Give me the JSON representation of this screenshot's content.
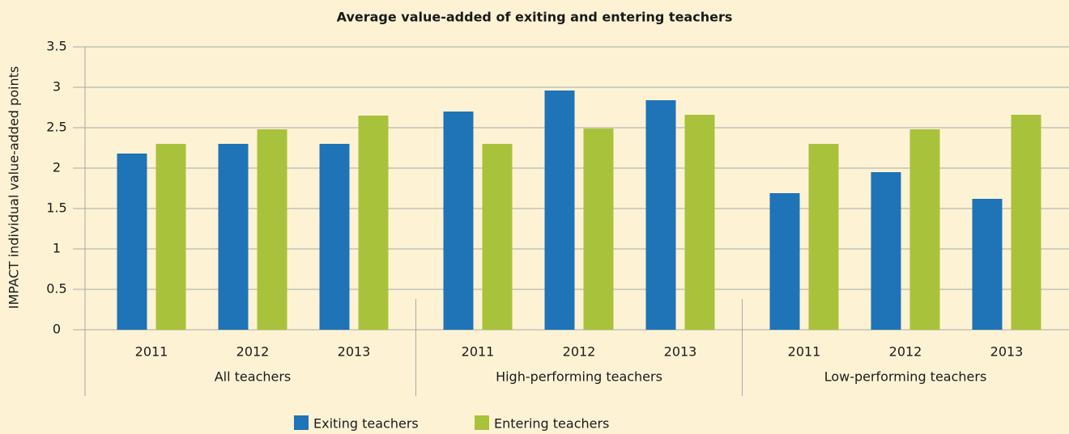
{
  "chart_data": {
    "type": "bar",
    "title": "Average value-added of exiting and entering teachers",
    "y_label": "IMPACT individual value-added points",
    "categories": [
      "2011",
      "2012",
      "2013",
      "2011",
      "2012",
      "2013",
      "2011",
      "2012",
      "2013"
    ],
    "category_groups": [
      "All teachers",
      "High-performing teachers",
      "Low-performing teachers"
    ],
    "series": [
      {
        "name": "Exiting teachers",
        "color": "#1f73b7",
        "values": [
          2.18,
          2.3,
          2.3,
          2.7,
          2.96,
          2.84,
          1.69,
          1.95,
          1.62
        ]
      },
      {
        "name": "Entering teachers",
        "color": "#a9c23b",
        "values": [
          2.3,
          2.48,
          2.65,
          2.3,
          2.49,
          2.66,
          2.3,
          2.48,
          2.66
        ]
      }
    ],
    "ylim": [
      0,
      3.5
    ],
    "yticks": [
      0,
      0.5,
      1,
      1.5,
      2,
      2.5,
      3,
      3.5
    ],
    "grid": true,
    "legend": "bottom"
  }
}
